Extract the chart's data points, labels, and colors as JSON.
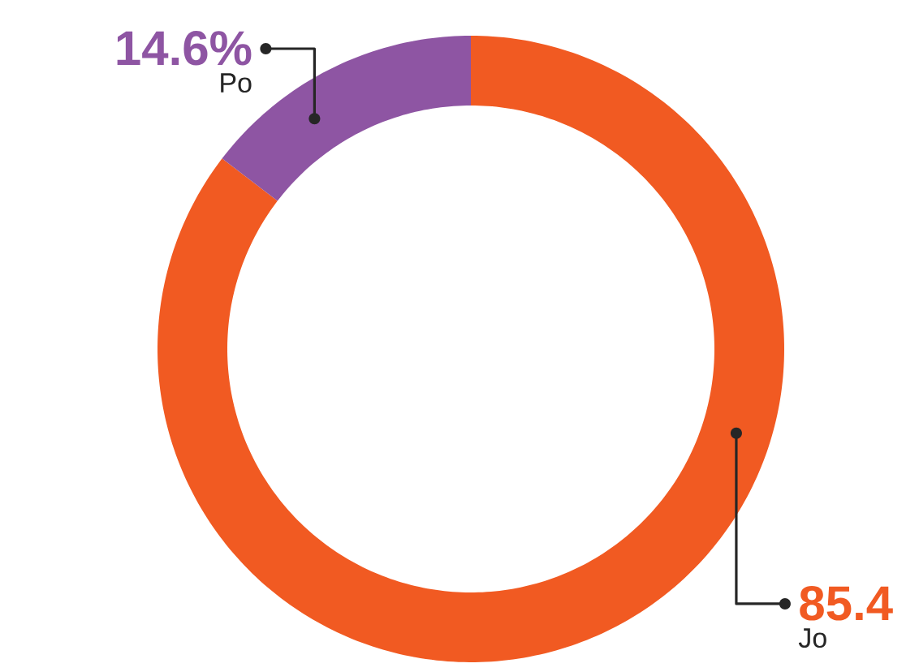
{
  "chart_data": {
    "type": "donut",
    "categories": [
      "Jo",
      "Po"
    ],
    "values": [
      85.4,
      14.6
    ],
    "colors": [
      "#f15a22",
      "#8e55a3"
    ],
    "value_labels": [
      "85.4",
      "14.6%"
    ]
  }
}
